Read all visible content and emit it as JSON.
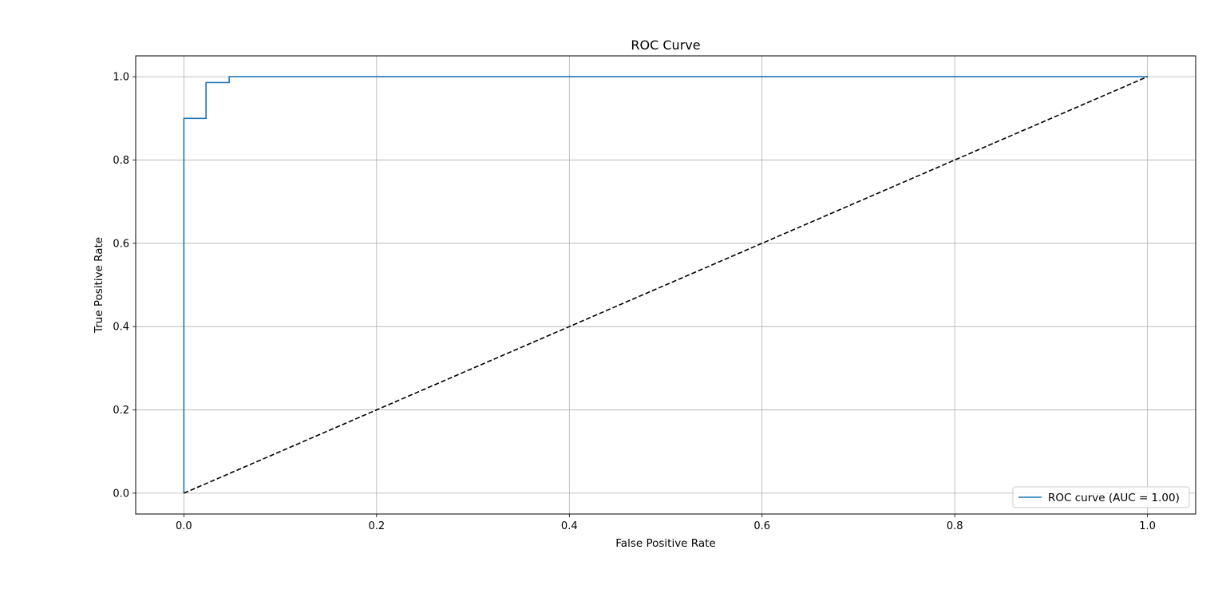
{
  "chart_data": {
    "type": "line",
    "title": "ROC Curve",
    "xlabel": "False Positive Rate",
    "ylabel": "True Positive Rate",
    "xlim": [
      -0.05,
      1.05
    ],
    "ylim": [
      -0.05,
      1.05
    ],
    "grid": true,
    "legend_position": "lower-right",
    "x_ticks": [
      0.0,
      0.2,
      0.4,
      0.6,
      0.8,
      1.0
    ],
    "x_tick_labels": [
      "0.0",
      "0.2",
      "0.4",
      "0.6",
      "0.8",
      "1.0"
    ],
    "y_ticks": [
      0.0,
      0.2,
      0.4,
      0.6,
      0.8,
      1.0
    ],
    "y_tick_labels": [
      "0.0",
      "0.2",
      "0.4",
      "0.6",
      "0.8",
      "1.0"
    ],
    "series": [
      {
        "name": "ROC curve (AUC = 1.00)",
        "color": "#1f77b4",
        "style": "solid",
        "x": [
          0.0,
          0.0,
          0.023,
          0.023,
          0.047,
          0.047,
          1.0
        ],
        "y": [
          0.0,
          0.9,
          0.9,
          0.986,
          0.986,
          1.0,
          1.0
        ]
      },
      {
        "color": "#000000",
        "style": "dashed",
        "x": [
          0.0,
          1.0
        ],
        "y": [
          0.0,
          1.0
        ]
      }
    ]
  }
}
